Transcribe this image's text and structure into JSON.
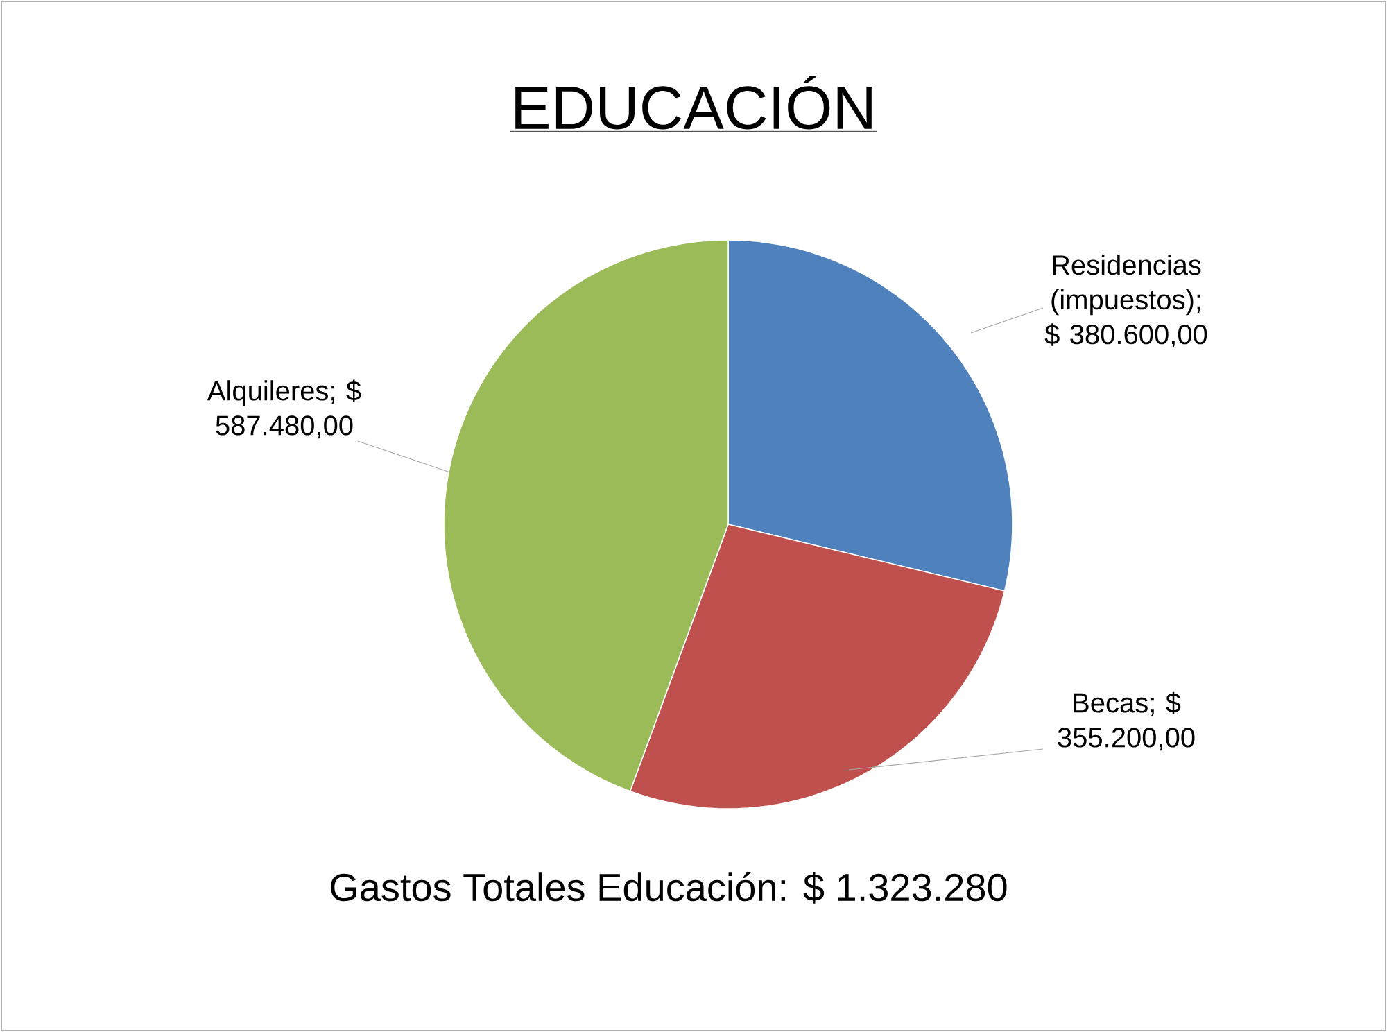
{
  "chart_data": {
    "type": "pie",
    "title": "EDUCACIÓN",
    "categories": [
      "Residencias (impuestos)",
      "Becas",
      "Alquileres"
    ],
    "values": [
      380600,
      355200,
      587480
    ],
    "colors": [
      "#4f81bd",
      "#c0504d",
      "#9bbb59"
    ],
    "value_labels": [
      "; $ 380.600,00",
      "; $ 355.200,00",
      "; $ 587.480,00"
    ],
    "annotations": [
      "Gastos Totales Educación:  $ 1.323.280"
    ]
  }
}
